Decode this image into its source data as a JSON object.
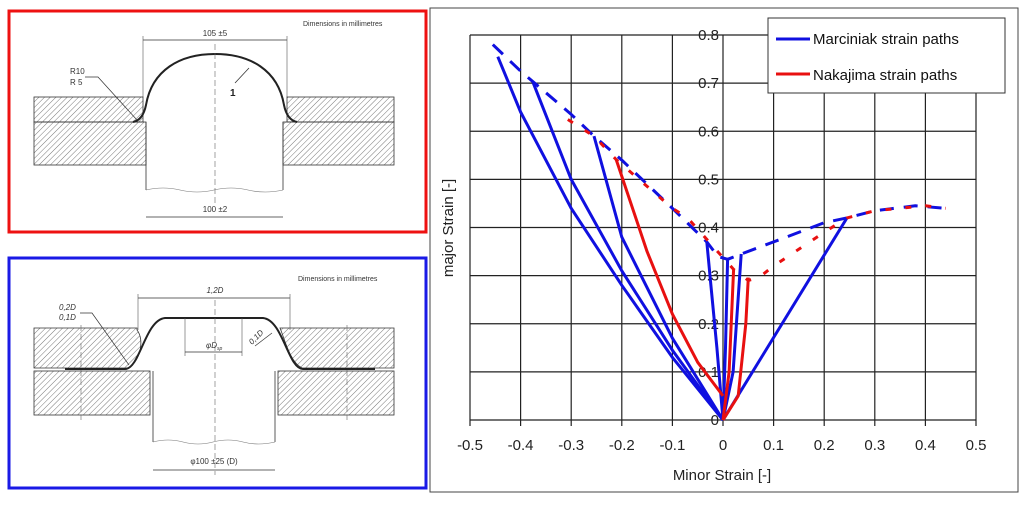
{
  "colors": {
    "marciniak": "#1010e0",
    "nakajima": "#e81010",
    "panel_top_frame": "#ee1111",
    "panel_bottom_frame": "#1a1ae6"
  },
  "nakajima_drawing": {
    "note": "Dimensions in millimetres",
    "top_dim": "105 ±5",
    "bottom_dim": "100 ±2",
    "radius_1": "R10",
    "radius_2": "R 5",
    "callout": "1"
  },
  "marciniak_drawing": {
    "note": "Dimensions in millimetres",
    "top_dim": "1,2D",
    "inner_dim": "φD",
    "inner_dim_sub": "sp",
    "bottom_dim": "φ100 ±25 (D)",
    "radius_1": "0,2D",
    "radius_2": "0,1D",
    "side_radius": "0,1D"
  },
  "chart_data": {
    "type": "line",
    "xlabel": "Minor Strain [-]",
    "ylabel": "major Strain [-]",
    "xlim": [
      -0.5,
      0.5
    ],
    "ylim": [
      0,
      0.8
    ],
    "x_ticks": [
      "-0.5",
      "-0.4",
      "-0.3",
      "-0.2",
      "-0.1",
      "0",
      "0.1",
      "0.2",
      "0.3",
      "0.4",
      "0.5"
    ],
    "y_ticks": [
      "0",
      "0.1",
      "0.2",
      "0.3",
      "0.4",
      "0.5",
      "0.6",
      "0.7",
      "0.8"
    ],
    "grid": true,
    "legend_placement": "top-right",
    "legend": [
      {
        "name": "Marciniak strain paths",
        "color": "#1010e0"
      },
      {
        "name": "Nakajima strain paths",
        "color": "#e81010"
      }
    ],
    "series": [
      {
        "group": "Marciniak strain paths",
        "style": "solid",
        "points": [
          [
            0,
            0
          ],
          [
            -0.1,
            0.13
          ],
          [
            -0.2,
            0.28
          ],
          [
            -0.3,
            0.44
          ],
          [
            -0.4,
            0.64
          ],
          [
            -0.445,
            0.755
          ]
        ]
      },
      {
        "group": "Marciniak strain paths",
        "style": "solid",
        "points": [
          [
            0,
            0
          ],
          [
            -0.1,
            0.145
          ],
          [
            -0.2,
            0.31
          ],
          [
            -0.3,
            0.5
          ],
          [
            -0.375,
            0.7
          ]
        ]
      },
      {
        "group": "Marciniak strain paths",
        "style": "solid",
        "points": [
          [
            0,
            0
          ],
          [
            -0.1,
            0.17
          ],
          [
            -0.2,
            0.38
          ],
          [
            -0.255,
            0.59
          ]
        ]
      },
      {
        "group": "Marciniak strain paths",
        "style": "solid",
        "points": [
          [
            0,
            0
          ],
          [
            -0.012,
            0.15
          ],
          [
            -0.024,
            0.28
          ],
          [
            -0.032,
            0.37
          ]
        ]
      },
      {
        "group": "Marciniak strain paths",
        "style": "solid",
        "points": [
          [
            0,
            0
          ],
          [
            0.005,
            0.15
          ],
          [
            0.009,
            0.334
          ]
        ]
      },
      {
        "group": "Marciniak strain paths",
        "style": "solid",
        "points": [
          [
            0,
            0
          ],
          [
            0.02,
            0.1
          ],
          [
            0.036,
            0.345
          ]
        ]
      },
      {
        "group": "Marciniak strain paths",
        "style": "solid",
        "points": [
          [
            0,
            0
          ],
          [
            0.245,
            0.42
          ]
        ]
      },
      {
        "group": "Nakajima strain paths",
        "style": "solid",
        "points": [
          [
            0,
            0.05
          ],
          [
            -0.05,
            0.12
          ],
          [
            -0.1,
            0.22
          ],
          [
            -0.15,
            0.35
          ],
          [
            -0.211,
            0.541
          ]
        ]
      },
      {
        "group": "Nakajima strain paths",
        "style": "solid",
        "points": [
          [
            0,
            0
          ],
          [
            0.012,
            0.1
          ],
          [
            0.021,
            0.313
          ]
        ]
      },
      {
        "group": "Nakajima strain paths",
        "style": "solid",
        "points": [
          [
            0,
            0
          ],
          [
            0.03,
            0.05
          ],
          [
            0.045,
            0.2
          ],
          [
            0.05,
            0.296
          ]
        ]
      },
      {
        "group": "Marciniak strain paths",
        "style": "dashed",
        "points": [
          [
            -0.455,
            0.78
          ],
          [
            -0.4,
            0.725
          ],
          [
            -0.3,
            0.635
          ],
          [
            -0.255,
            0.59
          ],
          [
            -0.2,
            0.54
          ],
          [
            -0.1,
            0.44
          ],
          [
            -0.032,
            0.37
          ],
          [
            -0.01,
            0.34
          ],
          [
            0.009,
            0.334
          ],
          [
            0.036,
            0.345
          ],
          [
            0.1,
            0.37
          ],
          [
            0.2,
            0.41
          ],
          [
            0.245,
            0.42
          ],
          [
            0.3,
            0.435
          ],
          [
            0.38,
            0.445
          ],
          [
            0.44,
            0.44
          ]
        ]
      },
      {
        "group": "Nakajima strain paths",
        "style": "dashed",
        "points": [
          [
            -0.33,
            0.64
          ],
          [
            -0.255,
            0.59
          ],
          [
            -0.211,
            0.541
          ],
          [
            -0.1,
            0.44
          ],
          [
            -0.07,
            0.42
          ],
          [
            0.021,
            0.313
          ],
          [
            0.05,
            0.29
          ],
          [
            0.07,
            0.295
          ],
          [
            0.1,
            0.32
          ],
          [
            0.2,
            0.39
          ],
          [
            0.245,
            0.42
          ],
          [
            0.3,
            0.435
          ],
          [
            0.4,
            0.445
          ],
          [
            0.44,
            0.44
          ]
        ]
      }
    ]
  }
}
